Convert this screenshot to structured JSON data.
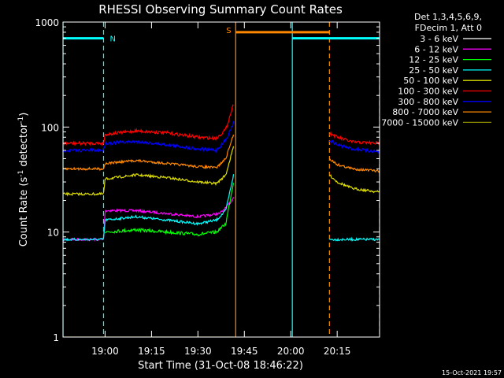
{
  "chart_data": {
    "type": "line",
    "title": "RHESSI Observing Summary Count Rates",
    "xlabel": "Start Time (31-Oct-08 18:46:22)",
    "ylabel_parts": [
      "Count Rate (s",
      "-1",
      " detector",
      "-1",
      ")"
    ],
    "yscale": "log",
    "ylim": [
      1,
      1000
    ],
    "xlim_minutes": [
      -13.6,
      88.7
    ],
    "x_ticks": [
      {
        "t": 0,
        "label": "19:00"
      },
      {
        "t": 15,
        "label": "19:15"
      },
      {
        "t": 30,
        "label": "19:30"
      },
      {
        "t": 45,
        "label": "19:45"
      },
      {
        "t": 60,
        "label": "20:00"
      },
      {
        "t": 75,
        "label": "20:15"
      }
    ],
    "y_ticks": [
      {
        "v": 1,
        "label": "1"
      },
      {
        "v": 10,
        "label": "10"
      },
      {
        "v": 100,
        "label": "100"
      },
      {
        "v": 1000,
        "label": "1000"
      }
    ],
    "legend": {
      "header": [
        "Det 1,3,4,5,6,9,",
        "FDecim 1, Att 0"
      ],
      "placement": "right"
    },
    "series": [
      {
        "name": "3 - 6 keV",
        "color": "#ffffff",
        "noise": 1.5,
        "segments": [
          [
            [
              -9.8,
              null
            ],
            [
              41.5,
              null
            ]
          ],
          [
            [
              72.5,
              null
            ],
            [
              88.7,
              null
            ]
          ]
        ]
      },
      {
        "name": "6 - 12 keV",
        "color": "#ff00ff",
        "noise": 1.5,
        "segments": [
          [
            [
              -13.6,
              8.5
            ],
            [
              -0.5,
              8.5
            ],
            [
              0,
              16
            ],
            [
              10,
              16
            ],
            [
              20,
              15
            ],
            [
              30,
              14
            ],
            [
              37,
              15
            ],
            [
              39,
              17
            ],
            [
              41,
              20
            ],
            [
              41.5,
              22
            ]
          ]
        ]
      },
      {
        "name": "12 - 25 keV",
        "color": "#00ff00",
        "noise": 2,
        "segments": [
          [
            [
              0,
              10
            ],
            [
              10,
              10.5
            ],
            [
              20,
              10
            ],
            [
              30,
              9.5
            ],
            [
              36,
              10
            ],
            [
              39,
              12
            ],
            [
              41.5,
              30
            ]
          ]
        ]
      },
      {
        "name": "25 - 50 keV",
        "color": "#00ffff",
        "noise": 1.5,
        "segments": [
          [
            [
              -13.6,
              8.5
            ],
            [
              -0.5,
              8.5
            ],
            [
              0,
              13
            ],
            [
              10,
              14
            ],
            [
              20,
              13
            ],
            [
              30,
              12
            ],
            [
              36,
              13
            ],
            [
              39,
              16
            ],
            [
              41.5,
              35
            ]
          ],
          [
            [
              72.5,
              8.5
            ],
            [
              88.7,
              8.5
            ]
          ]
        ]
      },
      {
        "name": "50 - 100 keV",
        "color": "#dddd00",
        "noise": 1.5,
        "segments": [
          [
            [
              -13.6,
              23
            ],
            [
              -0.5,
              23
            ],
            [
              0,
              32
            ],
            [
              10,
              35
            ],
            [
              20,
              33
            ],
            [
              30,
              30
            ],
            [
              36,
              29
            ],
            [
              39,
              35
            ],
            [
              41.5,
              65
            ]
          ],
          [
            [
              72.5,
              35
            ],
            [
              75,
              30
            ],
            [
              80,
              26
            ],
            [
              88.7,
              24
            ]
          ]
        ]
      },
      {
        "name": "100 - 300 keV",
        "color": "#ff0000",
        "noise": 2,
        "segments": [
          [
            [
              -13.6,
              70
            ],
            [
              -0.5,
              70
            ],
            [
              0,
              85
            ],
            [
              10,
              92
            ],
            [
              20,
              88
            ],
            [
              30,
              80
            ],
            [
              36,
              78
            ],
            [
              39,
              95
            ],
            [
              41.5,
              165
            ]
          ],
          [
            [
              72.5,
              88
            ],
            [
              75,
              80
            ],
            [
              80,
              72
            ],
            [
              88.7,
              70
            ]
          ]
        ]
      },
      {
        "name": "300 - 800 keV",
        "color": "#0000ff",
        "noise": 2,
        "segments": [
          [
            [
              -13.6,
              60
            ],
            [
              -0.5,
              60
            ],
            [
              0,
              70
            ],
            [
              10,
              73
            ],
            [
              20,
              68
            ],
            [
              30,
              62
            ],
            [
              36,
              60
            ],
            [
              39,
              75
            ],
            [
              41.5,
              110
            ]
          ],
          [
            [
              72.5,
              75
            ],
            [
              75,
              68
            ],
            [
              80,
              62
            ],
            [
              88.7,
              58
            ]
          ]
        ]
      },
      {
        "name": "800 - 7000 keV",
        "color": "#ff8800",
        "noise": 1.5,
        "segments": [
          [
            [
              -13.6,
              40
            ],
            [
              -0.5,
              40
            ],
            [
              0,
              45
            ],
            [
              10,
              48
            ],
            [
              20,
              45
            ],
            [
              30,
              42
            ],
            [
              36,
              41
            ],
            [
              39,
              50
            ],
            [
              41.5,
              85
            ]
          ],
          [
            [
              72.5,
              50
            ],
            [
              75,
              44
            ],
            [
              80,
              40
            ],
            [
              88.7,
              38
            ]
          ]
        ]
      },
      {
        "name": "7000 - 15000 keV",
        "color": "#888800",
        "noise": 0,
        "segments": [
          [
            [
              -13.6,
              1
            ],
            [
              41.5,
              1
            ]
          ]
        ]
      }
    ],
    "events": {
      "night_bar": {
        "label": "N",
        "color": "#00ffff",
        "value": 700,
        "x_ranges": [
          [
            -13.6,
            -0.5
          ],
          [
            60.5,
            88.7
          ]
        ]
      },
      "saa_bar": {
        "label": "S",
        "color": "#ff8800",
        "value": 800,
        "x_range": [
          42.2,
          72.5
        ]
      },
      "lines": [
        {
          "t": -13.6,
          "color": "#00ffff",
          "style": "solid"
        },
        {
          "t": -0.5,
          "color": "#00ffff",
          "style": "dashed"
        },
        {
          "t": 42.2,
          "color": "#ff8800",
          "style": "solid"
        },
        {
          "t": 60.5,
          "color": "#00ffff",
          "style": "solid"
        },
        {
          "t": 72.5,
          "color": "#ff8800",
          "style": "dashed"
        },
        {
          "t": 88.7,
          "color": "#00ffff",
          "style": "dashed"
        }
      ]
    }
  },
  "timestamp": "15-Oct-2021 19:57"
}
